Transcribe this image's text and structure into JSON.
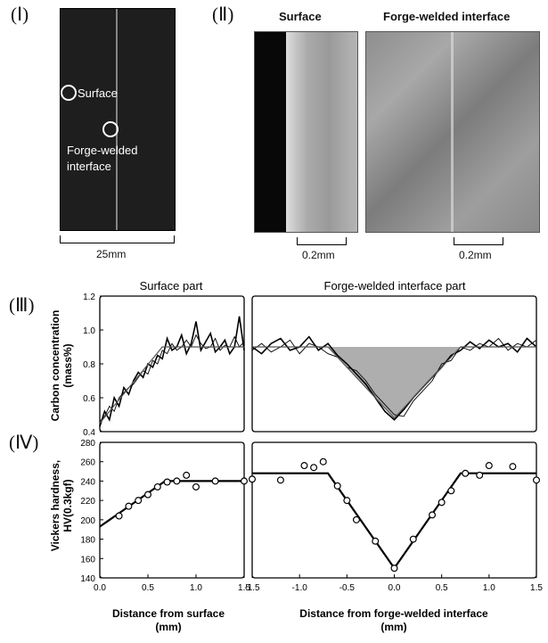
{
  "panels": {
    "p1": {
      "label": "(Ⅰ)",
      "surface": "Surface",
      "interface_line1": "Forge-welded",
      "interface_line2": "interface",
      "scale": "25mm"
    },
    "p2": {
      "label": "(Ⅱ)",
      "title_surface": "Surface",
      "title_interface": "Forge-welded interface",
      "scale_left": "0.2mm",
      "scale_right": "0.2mm"
    },
    "p3": {
      "label": "(Ⅲ)"
    },
    "p4": {
      "label": "(Ⅳ)"
    }
  },
  "chart_data": [
    {
      "id": "carbon_surface",
      "type": "line",
      "title": "Surface part",
      "ylabel": "Carbon concentration (mass%)",
      "ylabel_line1": "Carbon concentration",
      "ylabel_line2": "(mass%)",
      "xlim": [
        0,
        1.5
      ],
      "ylim": [
        0.4,
        1.2
      ],
      "yticks": [
        "0.4",
        "0.6",
        "0.8",
        "1.0",
        "1.2"
      ],
      "series": [
        {
          "x": [
            0.0,
            0.05,
            0.1,
            0.15,
            0.2,
            0.25,
            0.3,
            0.35,
            0.4,
            0.45,
            0.5,
            0.55,
            0.6,
            0.65,
            0.7,
            0.75,
            0.8,
            0.85,
            0.9,
            0.95,
            1.0,
            1.05,
            1.1,
            1.15,
            1.2,
            1.25,
            1.3,
            1.35,
            1.4,
            1.45,
            1.5
          ],
          "y": [
            0.43,
            0.52,
            0.47,
            0.6,
            0.55,
            0.66,
            0.62,
            0.7,
            0.75,
            0.72,
            0.8,
            0.78,
            0.85,
            0.83,
            0.95,
            0.88,
            0.9,
            0.97,
            0.86,
            0.92,
            1.05,
            0.88,
            0.93,
            0.98,
            0.87,
            0.9,
            0.94,
            0.86,
            0.9,
            1.08,
            0.88
          ]
        },
        {
          "x": [
            0.0,
            0.05,
            0.1,
            0.15,
            0.2,
            0.25,
            0.3,
            0.35,
            0.4,
            0.45,
            0.5,
            0.55,
            0.6,
            0.65,
            0.7,
            0.75,
            0.8,
            0.85,
            0.9,
            0.95,
            1.0,
            1.05,
            1.1,
            1.15,
            1.2,
            1.25,
            1.3,
            1.35,
            1.4,
            1.45,
            1.5
          ],
          "y": [
            0.46,
            0.49,
            0.55,
            0.52,
            0.6,
            0.63,
            0.66,
            0.68,
            0.72,
            0.76,
            0.74,
            0.82,
            0.8,
            0.88,
            0.86,
            0.92,
            0.88,
            0.9,
            0.94,
            0.9,
            0.97,
            0.92,
            0.89,
            0.9,
            0.95,
            0.88,
            0.91,
            0.9,
            0.96,
            0.9,
            0.93
          ]
        }
      ],
      "trend": {
        "x": [
          0.0,
          0.65,
          1.5
        ],
        "y": [
          0.45,
          0.9,
          0.9
        ]
      }
    },
    {
      "id": "carbon_interface",
      "type": "line",
      "title": "Forge-welded interface part",
      "xlim": [
        -1.5,
        1.5
      ],
      "ylim": [
        0.4,
        1.2
      ],
      "series": [
        {
          "x": [
            -1.5,
            -1.4,
            -1.3,
            -1.2,
            -1.1,
            -1.0,
            -0.9,
            -0.8,
            -0.7,
            -0.6,
            -0.5,
            -0.4,
            -0.3,
            -0.2,
            -0.1,
            0.0,
            0.1,
            0.2,
            0.3,
            0.4,
            0.5,
            0.6,
            0.7,
            0.8,
            0.9,
            1.0,
            1.1,
            1.2,
            1.3,
            1.4,
            1.5
          ],
          "y": [
            0.9,
            0.86,
            0.92,
            0.95,
            0.88,
            0.9,
            0.96,
            0.88,
            0.92,
            0.85,
            0.8,
            0.74,
            0.68,
            0.6,
            0.52,
            0.47,
            0.53,
            0.6,
            0.66,
            0.72,
            0.78,
            0.85,
            0.88,
            0.93,
            0.89,
            0.94,
            0.9,
            0.92,
            0.87,
            0.95,
            0.9
          ]
        },
        {
          "x": [
            -1.5,
            -1.4,
            -1.3,
            -1.2,
            -1.1,
            -1.0,
            -0.9,
            -0.8,
            -0.7,
            -0.6,
            -0.5,
            -0.4,
            -0.3,
            -0.2,
            -0.1,
            0.0,
            0.1,
            0.2,
            0.3,
            0.4,
            0.5,
            0.6,
            0.7,
            0.8,
            0.9,
            1.0,
            1.1,
            1.2,
            1.3,
            1.4,
            1.5
          ],
          "y": [
            0.88,
            0.92,
            0.87,
            0.9,
            0.94,
            0.86,
            0.92,
            0.9,
            0.86,
            0.84,
            0.78,
            0.76,
            0.7,
            0.62,
            0.56,
            0.5,
            0.49,
            0.58,
            0.64,
            0.7,
            0.8,
            0.82,
            0.9,
            0.88,
            0.92,
            0.9,
            0.95,
            0.88,
            0.92,
            0.9,
            0.94
          ]
        }
      ],
      "trend": {
        "x": [
          -1.5,
          -0.7,
          0.0,
          0.7,
          1.5
        ],
        "y": [
          0.9,
          0.9,
          0.48,
          0.9,
          0.9
        ]
      },
      "shaded": {
        "x": [
          -0.7,
          0.0,
          0.7
        ],
        "y": [
          0.9,
          0.48,
          0.9
        ],
        "color": "#9a9a9a"
      }
    },
    {
      "id": "hardness_surface",
      "type": "scatter",
      "ylabel": "Vickers hardness, HV(0.3kgf)",
      "ylabel_line1": "Vickers hardness,",
      "ylabel_line2": "HV(0.3kgf)",
      "xlabel": "Distance from surface (mm)",
      "xlabel_line1": "Distance from surface",
      "xlabel_line2": "(mm)",
      "xlim": [
        0,
        1.5
      ],
      "ylim": [
        140,
        280
      ],
      "xticks": [
        "0.0",
        "0.5",
        "1.0",
        "1.5"
      ],
      "yticks": [
        "140",
        "160",
        "180",
        "200",
        "220",
        "240",
        "260",
        "280"
      ],
      "points": {
        "x": [
          0.2,
          0.3,
          0.4,
          0.5,
          0.6,
          0.7,
          0.8,
          0.9,
          1.0,
          1.2,
          1.5
        ],
        "y": [
          204,
          214,
          220,
          226,
          234,
          239,
          240,
          246,
          234,
          240,
          240
        ]
      },
      "trend": {
        "x": [
          0.0,
          0.68,
          1.5
        ],
        "y": [
          193,
          240,
          240
        ]
      }
    },
    {
      "id": "hardness_interface",
      "type": "scatter",
      "xlabel": "Distance from forge-welded interface (mm)",
      "xlabel_line1": "Distance from forge-welded interface",
      "xlabel_line2": "(mm)",
      "xlim": [
        -1.5,
        1.5
      ],
      "ylim": [
        140,
        280
      ],
      "xticks": [
        "-1.5",
        "-1.0",
        "-0.5",
        "0.0",
        "0.5",
        "1.0",
        "1.5"
      ],
      "points": {
        "x": [
          -1.5,
          -1.2,
          -0.95,
          -0.85,
          -0.75,
          -0.6,
          -0.5,
          -0.4,
          -0.2,
          0.0,
          0.2,
          0.4,
          0.5,
          0.6,
          0.75,
          0.9,
          1.0,
          1.25,
          1.5
        ],
        "y": [
          242,
          241,
          256,
          254,
          260,
          235,
          220,
          200,
          178,
          150,
          180,
          205,
          218,
          230,
          248,
          246,
          256,
          255,
          241
        ]
      },
      "trend": {
        "x": [
          -1.5,
          -0.7,
          0.0,
          0.7,
          1.5
        ],
        "y": [
          248,
          248,
          150,
          248,
          248
        ]
      }
    }
  ]
}
